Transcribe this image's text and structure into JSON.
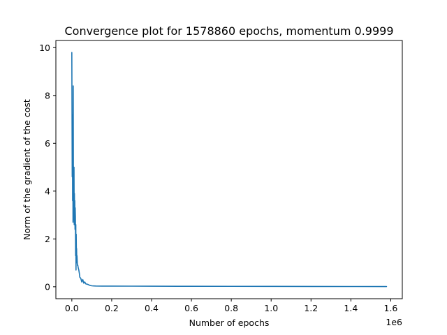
{
  "chart_data": {
    "type": "line",
    "title": "Convergence plot for 1578860 epochs, momentum 0.9999",
    "xlabel": "Number of epochs",
    "ylabel": "Norm of the gradient of the cost",
    "x_offset_label": "1e6",
    "xlim": [
      -80000,
      1658000
    ],
    "ylim": [
      -0.5,
      10.3
    ],
    "x_ticks": [
      0,
      200000,
      400000,
      600000,
      800000,
      1000000,
      1200000,
      1400000,
      1600000
    ],
    "x_tick_labels": [
      "0.0",
      "0.2",
      "0.4",
      "0.6",
      "0.8",
      "1.0",
      "1.2",
      "1.4",
      "1.6"
    ],
    "y_ticks": [
      0,
      2,
      4,
      6,
      8,
      10
    ],
    "y_tick_labels": [
      "0",
      "2",
      "4",
      "6",
      "8",
      "10"
    ],
    "grid": false,
    "color": "#1f77b4",
    "series": [
      {
        "x": [
          0,
          2000,
          3000,
          4000,
          5000,
          6000,
          7000,
          8000,
          9000,
          10000,
          11000,
          12000,
          13000,
          14000,
          15000,
          16000,
          17000,
          18000,
          19000,
          20000,
          21000,
          22000,
          23000,
          24000,
          25000,
          26000,
          27000,
          28000,
          30000,
          32000,
          35000,
          38000,
          40000,
          45000,
          50000,
          55000,
          60000,
          65000,
          70000,
          80000,
          90000,
          100000,
          110000,
          120000,
          150000,
          200000,
          300000,
          400000,
          600000,
          800000,
          1000000,
          1200000,
          1400000,
          1578860
        ],
        "y": [
          9.8,
          4.6,
          7.2,
          3.6,
          6.1,
          2.7,
          8.4,
          4.4,
          3.3,
          2.8,
          5.0,
          2.6,
          3.9,
          2.9,
          3.6,
          2.4,
          3.3,
          2.9,
          1.3,
          2.6,
          0.7,
          2.2,
          1.4,
          1.6,
          1.0,
          1.3,
          1.1,
          0.9,
          0.9,
          0.8,
          0.7,
          0.55,
          0.4,
          0.35,
          0.2,
          0.3,
          0.15,
          0.2,
          0.12,
          0.1,
          0.06,
          0.04,
          0.035,
          0.03,
          0.028,
          0.026,
          0.025,
          0.023,
          0.02,
          0.018,
          0.015,
          0.013,
          0.011,
          0.01
        ]
      }
    ]
  }
}
